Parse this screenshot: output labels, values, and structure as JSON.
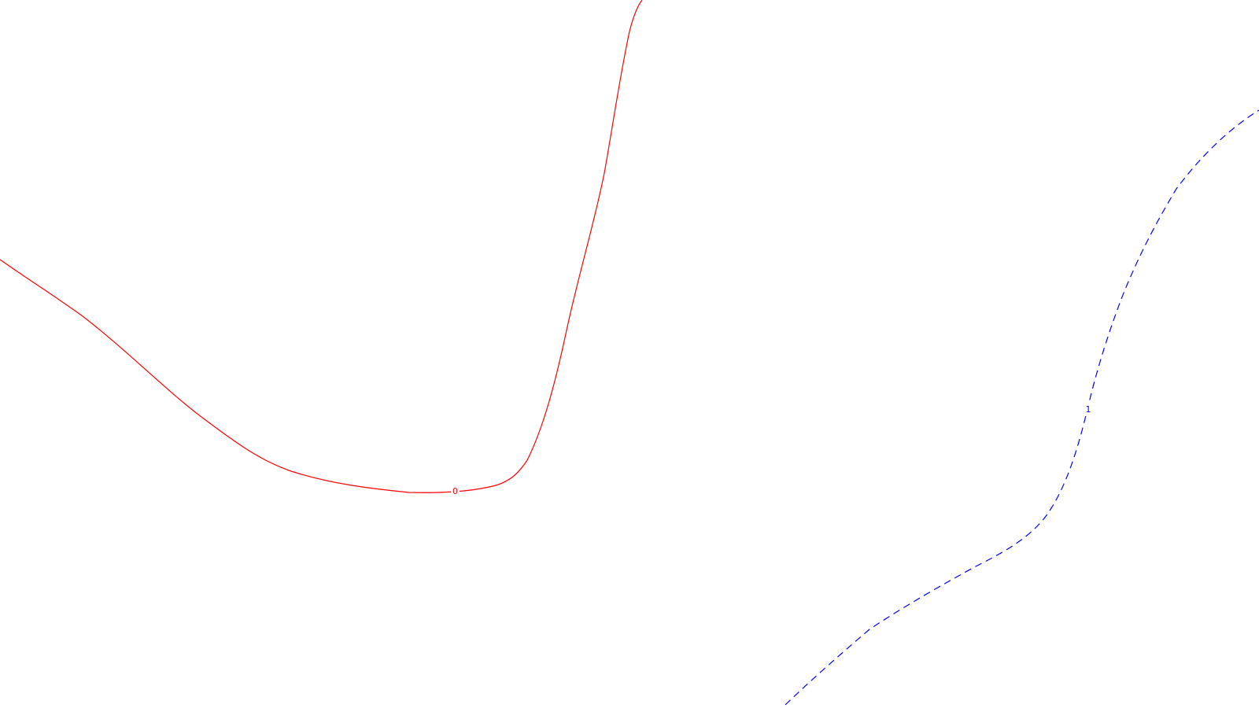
{
  "contours": [
    {
      "label": "0",
      "color": "#ff0000",
      "line_style": "solid"
    },
    {
      "label": "1",
      "color": "#0000ff",
      "line_style": "dashed"
    }
  ]
}
